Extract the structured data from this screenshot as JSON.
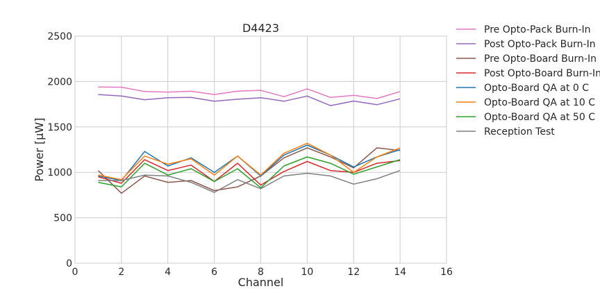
{
  "chart_data": {
    "type": "line",
    "title": "D4423",
    "xlabel": "Channel",
    "ylabel": "Power [μW]",
    "xlim": [
      0,
      16
    ],
    "ylim": [
      0,
      2500
    ],
    "xticks": [
      0,
      2,
      4,
      6,
      8,
      10,
      12,
      14,
      16
    ],
    "yticks": [
      0,
      500,
      1000,
      1500,
      2000,
      2500
    ],
    "grid": true,
    "legend_position": "outside-right",
    "x": [
      1,
      2,
      3,
      4,
      5,
      6,
      7,
      8,
      9,
      10,
      11,
      12,
      13,
      14
    ],
    "series": [
      {
        "name": "Pre Opto-Pack Burn-In",
        "color": "#e377c2",
        "values": [
          1940,
          1937,
          1890,
          1884,
          1893,
          1857,
          1894,
          1903,
          1833,
          1920,
          1825,
          1848,
          1813,
          1890
        ]
      },
      {
        "name": "Post Opto-Pack Burn-In",
        "color": "#9467bd",
        "values": [
          1857,
          1841,
          1800,
          1822,
          1826,
          1783,
          1805,
          1822,
          1783,
          1840,
          1735,
          1785,
          1745,
          1810
        ]
      },
      {
        "name": "Pre Opto-Board Burn-In",
        "color": "#8c564b",
        "values": [
          1020,
          770,
          960,
          890,
          910,
          800,
          840,
          960,
          1160,
          1270,
          1170,
          1050,
          1270,
          1240
        ]
      },
      {
        "name": "Post Opto-Board Burn-In",
        "color": "#d62728",
        "values": [
          950,
          880,
          1140,
          1020,
          1080,
          900,
          1100,
          860,
          1010,
          1120,
          1020,
          1000,
          1100,
          1130
        ]
      },
      {
        "name": "Opto-Board QA at 0 C",
        "color": "#1f77b4",
        "values": [
          960,
          910,
          1230,
          1070,
          1160,
          1000,
          1180,
          960,
          1190,
          1300,
          1190,
          1060,
          1170,
          1250
        ]
      },
      {
        "name": "Opto-Board QA at 10 C",
        "color": "#ff7f0e",
        "values": [
          970,
          920,
          1180,
          1090,
          1150,
          970,
          1180,
          970,
          1210,
          1320,
          1190,
          1000,
          1170,
          1270
        ]
      },
      {
        "name": "Opto-Board QA at 50 C",
        "color": "#2ca02c",
        "values": [
          890,
          840,
          1100,
          970,
          1040,
          900,
          1040,
          830,
          1070,
          1170,
          1100,
          980,
          1060,
          1140
        ]
      },
      {
        "name": "Reception Test",
        "color": "#7f7f7f",
        "values": [
          910,
          910,
          970,
          960,
          890,
          780,
          920,
          820,
          960,
          990,
          960,
          870,
          930,
          1020
        ]
      }
    ]
  }
}
